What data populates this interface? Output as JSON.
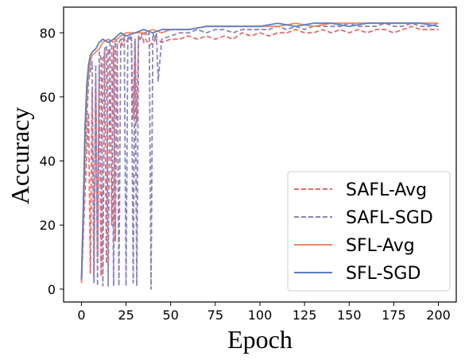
{
  "chart_data": {
    "type": "line",
    "title": "",
    "xlabel": "Epoch",
    "ylabel": "Accuracy",
    "xlim": [
      -10,
      210
    ],
    "ylim": [
      -4,
      88
    ],
    "xticks": [
      0,
      25,
      50,
      75,
      100,
      125,
      150,
      175,
      200
    ],
    "yticks": [
      0,
      20,
      40,
      60,
      80
    ],
    "grid": false,
    "legend_position": "lower-right",
    "series": [
      {
        "name": "SAFL-Avg",
        "color": "#e8696e",
        "style": "dashed",
        "x": [
          0,
          2,
          4,
          5,
          6,
          7,
          8,
          9,
          10,
          11,
          12,
          13,
          14,
          15,
          16,
          17,
          18,
          19,
          20,
          21,
          22,
          23,
          24,
          25,
          26,
          27,
          28,
          29,
          30,
          31,
          32,
          33,
          34,
          35,
          36,
          38,
          40,
          42,
          45,
          50,
          55,
          60,
          65,
          70,
          75,
          80,
          85,
          90,
          95,
          100,
          105,
          110,
          115,
          120,
          125,
          130,
          135,
          140,
          145,
          150,
          155,
          160,
          165,
          170,
          175,
          180,
          185,
          190,
          195,
          200
        ],
        "y": [
          2,
          30,
          55,
          5,
          62,
          3,
          66,
          10,
          70,
          4,
          72,
          74,
          8,
          75,
          73,
          20,
          76,
          15,
          77,
          77,
          78,
          76,
          78,
          77,
          78,
          79,
          78,
          53,
          78,
          52,
          79,
          78,
          79,
          77,
          78,
          76,
          77,
          78,
          77,
          78,
          78,
          79,
          78,
          79,
          78,
          79,
          78,
          80,
          79,
          80,
          79,
          80,
          80,
          81,
          80,
          80,
          81,
          80,
          81,
          80,
          81,
          80,
          81,
          81,
          80,
          81,
          82,
          81,
          81,
          81
        ]
      },
      {
        "name": "SAFL-SGD",
        "color": "#8a84ba",
        "style": "dashed",
        "x": [
          0,
          2,
          4,
          6,
          7,
          8,
          9,
          10,
          11,
          12,
          13,
          14,
          15,
          16,
          17,
          18,
          19,
          20,
          21,
          22,
          23,
          24,
          25,
          26,
          27,
          28,
          29,
          30,
          31,
          32,
          33,
          34,
          35,
          36,
          37,
          38,
          39,
          40,
          41,
          42,
          43,
          45,
          50,
          55,
          60,
          65,
          70,
          75,
          80,
          85,
          90,
          95,
          100,
          105,
          110,
          115,
          120,
          125,
          130,
          135,
          140,
          145,
          150,
          155,
          160,
          165,
          170,
          175,
          180,
          185,
          190,
          195,
          200
        ],
        "y": [
          3,
          40,
          65,
          71,
          2,
          70,
          1,
          74,
          72,
          1,
          75,
          76,
          1,
          77,
          76,
          1,
          78,
          77,
          1,
          78,
          78,
          79,
          1,
          79,
          78,
          79,
          2,
          78,
          1,
          79,
          78,
          80,
          79,
          80,
          79,
          80,
          0,
          80,
          78,
          80,
          65,
          78,
          79,
          80,
          80,
          81,
          80,
          81,
          81,
          80,
          81,
          81,
          81,
          81,
          82,
          81,
          82,
          81,
          82,
          82,
          82,
          82,
          83,
          82,
          82,
          82,
          83,
          82,
          82,
          83,
          82,
          82,
          83
        ]
      },
      {
        "name": "SFL-Avg",
        "color": "#f0875f",
        "style": "solid",
        "x": [
          0,
          1,
          2,
          3,
          4,
          5,
          6,
          8,
          10,
          12,
          15,
          18,
          20,
          22,
          25,
          30,
          35,
          40,
          45,
          50,
          60,
          70,
          80,
          90,
          100,
          110,
          120,
          130,
          140,
          150,
          160,
          170,
          180,
          190,
          200
        ],
        "y": [
          2,
          20,
          45,
          60,
          67,
          71,
          73,
          74,
          75,
          77,
          78,
          77,
          78,
          79,
          80,
          80,
          80,
          81,
          80,
          81,
          81,
          82,
          82,
          82,
          82,
          82,
          83,
          82,
          83,
          83,
          83,
          83,
          83,
          83,
          83
        ]
      },
      {
        "name": "SFL-SGD",
        "color": "#5b7fbf",
        "style": "solid",
        "x": [
          0,
          1,
          2,
          3,
          4,
          5,
          6,
          8,
          10,
          12,
          15,
          18,
          20,
          22,
          25,
          30,
          35,
          40,
          45,
          50,
          60,
          70,
          80,
          90,
          100,
          110,
          120,
          130,
          140,
          150,
          160,
          170,
          180,
          190,
          200
        ],
        "y": [
          3,
          25,
          50,
          64,
          70,
          73,
          74,
          75,
          77,
          78,
          77,
          78,
          79,
          80,
          79,
          80,
          81,
          80,
          81,
          81,
          81,
          82,
          82,
          82,
          82,
          83,
          82,
          83,
          83,
          82,
          83,
          83,
          83,
          83,
          82
        ]
      }
    ]
  }
}
